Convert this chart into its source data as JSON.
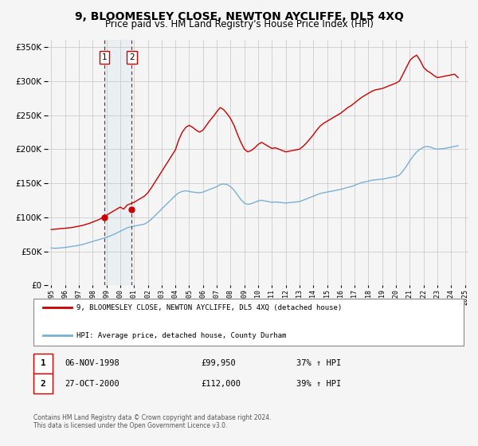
{
  "title": "9, BLOOMESLEY CLOSE, NEWTON AYCLIFFE, DL5 4XQ",
  "subtitle": "Price paid vs. HM Land Registry's House Price Index (HPI)",
  "title_fontsize": 10,
  "subtitle_fontsize": 8.5,
  "background_color": "#f5f5f5",
  "plot_bg_color": "#f5f5f5",
  "grid_color": "#cccccc",
  "price_line_color": "#cc0000",
  "hpi_line_color": "#7ab0d4",
  "ylim": [
    0,
    360000
  ],
  "yticks": [
    0,
    50000,
    100000,
    150000,
    200000,
    250000,
    300000,
    350000
  ],
  "legend_price_label": "9, BLOOMESLEY CLOSE, NEWTON AYCLIFFE, DL5 4XQ (detached house)",
  "legend_hpi_label": "HPI: Average price, detached house, County Durham",
  "transaction1_label": "1",
  "transaction1_date": "06-NOV-1998",
  "transaction1_price": "£99,950",
  "transaction1_hpi": "37% ↑ HPI",
  "transaction1_year": 1998.85,
  "transaction1_value": 99950,
  "transaction2_label": "2",
  "transaction2_date": "27-OCT-2000",
  "transaction2_price": "£112,000",
  "transaction2_hpi": "39% ↑ HPI",
  "transaction2_year": 2000.82,
  "transaction2_value": 112000,
  "footer_text": "Contains HM Land Registry data © Crown copyright and database right 2024.\nThis data is licensed under the Open Government Licence v3.0.",
  "hpi_data_x": [
    1995.0,
    1995.25,
    1995.5,
    1995.75,
    1996.0,
    1996.25,
    1996.5,
    1996.75,
    1997.0,
    1997.25,
    1997.5,
    1997.75,
    1998.0,
    1998.25,
    1998.5,
    1998.75,
    1999.0,
    1999.25,
    1999.5,
    1999.75,
    2000.0,
    2000.25,
    2000.5,
    2000.75,
    2001.0,
    2001.25,
    2001.5,
    2001.75,
    2002.0,
    2002.25,
    2002.5,
    2002.75,
    2003.0,
    2003.25,
    2003.5,
    2003.75,
    2004.0,
    2004.25,
    2004.5,
    2004.75,
    2005.0,
    2005.25,
    2005.5,
    2005.75,
    2006.0,
    2006.25,
    2006.5,
    2006.75,
    2007.0,
    2007.25,
    2007.5,
    2007.75,
    2008.0,
    2008.25,
    2008.5,
    2008.75,
    2009.0,
    2009.25,
    2009.5,
    2009.75,
    2010.0,
    2010.25,
    2010.5,
    2010.75,
    2011.0,
    2011.25,
    2011.5,
    2011.75,
    2012.0,
    2012.25,
    2012.5,
    2012.75,
    2013.0,
    2013.25,
    2013.5,
    2013.75,
    2014.0,
    2014.25,
    2014.5,
    2014.75,
    2015.0,
    2015.25,
    2015.5,
    2015.75,
    2016.0,
    2016.25,
    2016.5,
    2016.75,
    2017.0,
    2017.25,
    2017.5,
    2017.75,
    2018.0,
    2018.25,
    2018.5,
    2018.75,
    2019.0,
    2019.25,
    2019.5,
    2019.75,
    2020.0,
    2020.25,
    2020.5,
    2020.75,
    2021.0,
    2021.25,
    2021.5,
    2021.75,
    2022.0,
    2022.25,
    2022.5,
    2022.75,
    2023.0,
    2023.25,
    2023.5,
    2023.75,
    2024.0,
    2024.25,
    2024.5
  ],
  "hpi_data_y": [
    55000,
    54500,
    54800,
    55200,
    55800,
    56500,
    57200,
    58000,
    59000,
    60000,
    61500,
    63000,
    64500,
    66000,
    67500,
    69000,
    70500,
    72500,
    74500,
    77000,
    79500,
    82000,
    84500,
    86000,
    87000,
    88000,
    89000,
    90000,
    93000,
    97000,
    102000,
    107000,
    112000,
    117000,
    122000,
    127000,
    132000,
    136000,
    138000,
    139000,
    138000,
    137000,
    136500,
    136000,
    137000,
    139000,
    141000,
    143000,
    145000,
    148000,
    149000,
    148000,
    145000,
    140000,
    133000,
    126000,
    121000,
    119000,
    120000,
    122000,
    124000,
    125000,
    124000,
    123000,
    122000,
    122500,
    122000,
    121500,
    121000,
    121500,
    122000,
    122500,
    123000,
    125000,
    127000,
    129000,
    131000,
    133000,
    135000,
    136000,
    137000,
    138000,
    139000,
    140000,
    141000,
    142500,
    144000,
    145000,
    147000,
    149000,
    151000,
    152000,
    153000,
    154500,
    155000,
    155500,
    156000,
    157000,
    158000,
    159000,
    160000,
    162000,
    168000,
    175000,
    183000,
    190000,
    196000,
    200000,
    203000,
    204000,
    203000,
    201000,
    200000,
    200500,
    201000,
    202000,
    203000,
    204000,
    205000
  ],
  "price_data_x": [
    1995.0,
    1995.25,
    1995.5,
    1995.75,
    1996.0,
    1996.25,
    1996.5,
    1996.75,
    1997.0,
    1997.25,
    1997.5,
    1997.75,
    1998.0,
    1998.25,
    1998.5,
    1998.75,
    1999.0,
    1999.25,
    1999.5,
    1999.75,
    2000.0,
    2000.25,
    2000.5,
    2000.75,
    2001.0,
    2001.25,
    2001.5,
    2001.75,
    2002.0,
    2002.25,
    2002.5,
    2002.75,
    2003.0,
    2003.25,
    2003.5,
    2003.75,
    2004.0,
    2004.25,
    2004.5,
    2004.75,
    2005.0,
    2005.25,
    2005.5,
    2005.75,
    2006.0,
    2006.25,
    2006.5,
    2006.75,
    2007.0,
    2007.25,
    2007.5,
    2007.75,
    2008.0,
    2008.25,
    2008.5,
    2008.75,
    2009.0,
    2009.25,
    2009.5,
    2009.75,
    2010.0,
    2010.25,
    2010.5,
    2010.75,
    2011.0,
    2011.25,
    2011.5,
    2011.75,
    2012.0,
    2012.25,
    2012.5,
    2012.75,
    2013.0,
    2013.25,
    2013.5,
    2013.75,
    2014.0,
    2014.25,
    2014.5,
    2014.75,
    2015.0,
    2015.25,
    2015.5,
    2015.75,
    2016.0,
    2016.25,
    2016.5,
    2016.75,
    2017.0,
    2017.25,
    2017.5,
    2017.75,
    2018.0,
    2018.25,
    2018.5,
    2018.75,
    2019.0,
    2019.25,
    2019.5,
    2019.75,
    2020.0,
    2020.25,
    2020.5,
    2020.75,
    2021.0,
    2021.25,
    2021.5,
    2021.75,
    2022.0,
    2022.25,
    2022.5,
    2022.75,
    2023.0,
    2023.25,
    2023.5,
    2023.75,
    2024.0,
    2024.25,
    2024.5
  ],
  "price_data_y": [
    82000,
    82500,
    83000,
    83500,
    84000,
    84500,
    85000,
    86000,
    87000,
    88000,
    89500,
    91000,
    93000,
    95000,
    97000,
    99950,
    103000,
    106000,
    109000,
    112000,
    115000,
    112000,
    118000,
    120000,
    122000,
    125000,
    128000,
    131000,
    136000,
    143000,
    151000,
    159000,
    167000,
    175000,
    183000,
    191000,
    199000,
    214000,
    225000,
    232000,
    235000,
    232000,
    228000,
    225000,
    228000,
    235000,
    242000,
    248000,
    255000,
    261000,
    258000,
    252000,
    245000,
    235000,
    222000,
    210000,
    200000,
    196000,
    198000,
    202000,
    207000,
    210000,
    207000,
    204000,
    201000,
    202000,
    200000,
    198000,
    196000,
    197000,
    198000,
    199000,
    200000,
    204000,
    209000,
    215000,
    221000,
    228000,
    234000,
    238000,
    241000,
    244000,
    247000,
    250000,
    253000,
    257000,
    261000,
    264000,
    268000,
    272000,
    276000,
    279000,
    282000,
    285000,
    287000,
    288000,
    289000,
    291000,
    293000,
    295000,
    297000,
    300000,
    310000,
    320000,
    330000,
    335000,
    338000,
    330000,
    320000,
    315000,
    312000,
    308000,
    305000,
    306000,
    307000,
    308000,
    309000,
    310000,
    305000
  ]
}
